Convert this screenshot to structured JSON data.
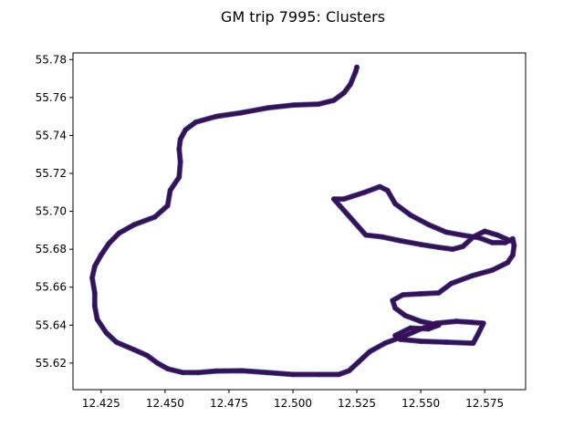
{
  "chart_data": {
    "type": "scatter",
    "title": "GM trip 7995: Clusters",
    "xlabel": "",
    "ylabel": "",
    "xlim": [
      12.414,
      12.591
    ],
    "ylim": [
      55.606,
      55.7835
    ],
    "grid": false,
    "legend": "none",
    "x_ticks": [
      12.425,
      12.45,
      12.475,
      12.5,
      12.525,
      12.55,
      12.575
    ],
    "x_tick_labels": [
      "12.425",
      "12.450",
      "12.475",
      "12.500",
      "12.525",
      "12.550",
      "12.575"
    ],
    "y_ticks": [
      55.62,
      55.64,
      55.66,
      55.68,
      55.7,
      55.72,
      55.74,
      55.76,
      55.78
    ],
    "y_tick_labels": [
      "55.62",
      "55.64",
      "55.66",
      "55.68",
      "55.70",
      "55.72",
      "55.74",
      "55.76",
      "55.78"
    ],
    "colors": {
      "point": "#3b0f55",
      "edge": "#3e6bb0"
    },
    "series": [
      {
        "points": [
          [
            12.525,
            55.776
          ],
          [
            12.5245,
            55.7735
          ],
          [
            12.5225,
            55.767
          ],
          [
            12.52,
            55.7625
          ],
          [
            12.516,
            55.7585
          ],
          [
            12.51,
            55.7565
          ],
          [
            12.5,
            55.756
          ],
          [
            12.49,
            55.7545
          ],
          [
            12.48,
            55.752
          ],
          [
            12.47,
            55.75
          ],
          [
            12.462,
            55.747
          ],
          [
            12.458,
            55.743
          ],
          [
            12.456,
            55.738
          ],
          [
            12.4555,
            55.733
          ],
          [
            12.456,
            55.726
          ],
          [
            12.4555,
            55.718
          ],
          [
            12.452,
            55.711
          ],
          [
            12.451,
            55.703
          ],
          [
            12.446,
            55.697
          ],
          [
            12.438,
            55.693
          ],
          [
            12.432,
            55.6885
          ],
          [
            12.428,
            55.683
          ],
          [
            12.425,
            55.677
          ],
          [
            12.4225,
            55.671
          ],
          [
            12.4215,
            55.665
          ],
          [
            12.4225,
            55.657
          ],
          [
            12.4225,
            55.65
          ],
          [
            12.4235,
            55.643
          ],
          [
            12.427,
            55.636
          ],
          [
            12.431,
            55.631
          ],
          [
            12.438,
            55.627
          ],
          [
            12.443,
            55.624
          ],
          [
            12.447,
            55.62
          ],
          [
            12.451,
            55.617
          ],
          [
            12.457,
            55.615
          ],
          [
            12.463,
            55.615
          ],
          [
            12.47,
            55.6158
          ],
          [
            12.48,
            55.616
          ],
          [
            12.49,
            55.615
          ],
          [
            12.5,
            55.614
          ],
          [
            12.51,
            55.614
          ],
          [
            12.518,
            55.614
          ],
          [
            12.522,
            55.616
          ],
          [
            12.526,
            55.621
          ],
          [
            12.53,
            55.626
          ],
          [
            12.536,
            55.6305
          ],
          [
            12.544,
            55.6345
          ],
          [
            12.55,
            55.638
          ],
          [
            12.556,
            55.641
          ],
          [
            12.564,
            55.642
          ],
          [
            12.57,
            55.6415
          ],
          [
            12.5745,
            55.641
          ],
          [
            12.5725,
            55.6355
          ],
          [
            12.5705,
            55.6305
          ],
          [
            12.56,
            55.631
          ],
          [
            12.55,
            55.6315
          ],
          [
            12.542,
            55.6325
          ],
          [
            12.54,
            55.6345
          ],
          [
            12.546,
            55.6385
          ],
          [
            12.553,
            55.638
          ],
          [
            12.557,
            55.64
          ],
          [
            12.55,
            55.642
          ],
          [
            12.544,
            55.645
          ],
          [
            12.54,
            55.649
          ],
          [
            12.539,
            55.653
          ],
          [
            12.543,
            55.656
          ],
          [
            12.55,
            55.6565
          ],
          [
            12.557,
            55.657
          ],
          [
            12.562,
            55.662
          ],
          [
            12.57,
            55.666
          ],
          [
            12.578,
            55.669
          ],
          [
            12.584,
            55.673
          ],
          [
            12.586,
            55.677
          ],
          [
            12.5865,
            55.682
          ],
          [
            12.586,
            55.6855
          ],
          [
            12.583,
            55.6835
          ],
          [
            12.578,
            55.6835
          ],
          [
            12.573,
            55.686
          ],
          [
            12.566,
            55.6875
          ],
          [
            12.56,
            55.689
          ],
          [
            12.553,
            55.693
          ],
          [
            12.546,
            55.698
          ],
          [
            12.54,
            55.704
          ],
          [
            12.537,
            55.711
          ],
          [
            12.534,
            55.713
          ],
          [
            12.528,
            55.71
          ],
          [
            12.52,
            55.7065
          ],
          [
            12.516,
            55.7065
          ],
          [
            12.5285,
            55.6875
          ],
          [
            12.535,
            55.6865
          ],
          [
            12.542,
            55.6845
          ],
          [
            12.55,
            55.6825
          ],
          [
            12.557,
            55.681
          ],
          [
            12.5625,
            55.68
          ],
          [
            12.5665,
            55.6815
          ],
          [
            12.5705,
            55.6865
          ],
          [
            12.575,
            55.6895
          ],
          [
            12.58,
            55.6875
          ],
          [
            12.585,
            55.6845
          ]
        ]
      }
    ]
  }
}
